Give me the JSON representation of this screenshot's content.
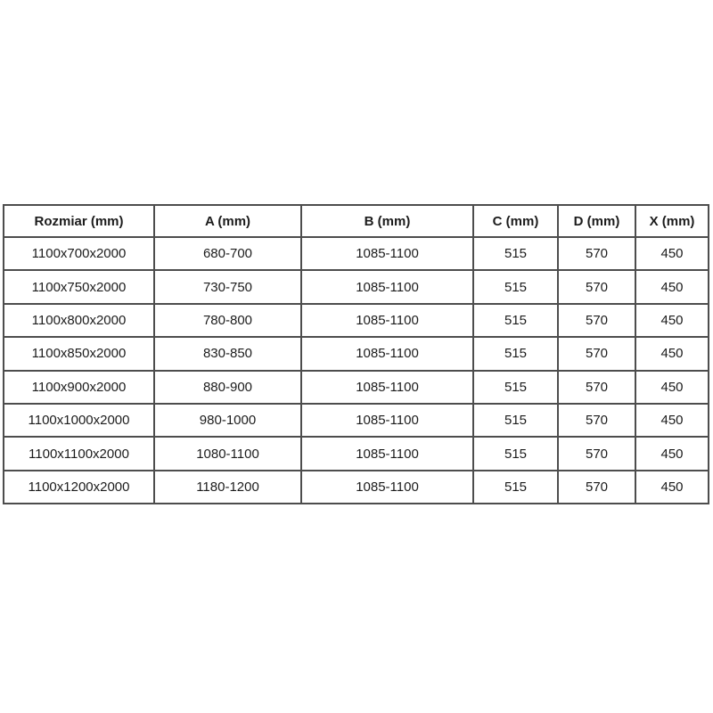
{
  "table": {
    "headers": [
      "Rozmiar (mm)",
      "A (mm)",
      "B (mm)",
      "C (mm)",
      "D (mm)",
      "X (mm)"
    ],
    "rows": [
      [
        "1100x700x2000",
        "680-700",
        "1085-1100",
        "515",
        "570",
        "450"
      ],
      [
        "1100x750x2000",
        "730-750",
        "1085-1100",
        "515",
        "570",
        "450"
      ],
      [
        "1100x800x2000",
        "780-800",
        "1085-1100",
        "515",
        "570",
        "450"
      ],
      [
        "1100x850x2000",
        "830-850",
        "1085-1100",
        "515",
        "570",
        "450"
      ],
      [
        "1100x900x2000",
        "880-900",
        "1085-1100",
        "515",
        "570",
        "450"
      ],
      [
        "1100x1000x2000",
        "980-1000",
        "1085-1100",
        "515",
        "570",
        "450"
      ],
      [
        "1100x1100x2000",
        "1080-1100",
        "1085-1100",
        "515",
        "570",
        "450"
      ],
      [
        "1100x1200x2000",
        "1180-1200",
        "1085-1100",
        "515",
        "570",
        "450"
      ]
    ],
    "colors": {
      "border": "#4d4d4d",
      "text": "#1c1c1c",
      "cell_background": "#ffffff",
      "page_background": "#ffffff"
    }
  }
}
